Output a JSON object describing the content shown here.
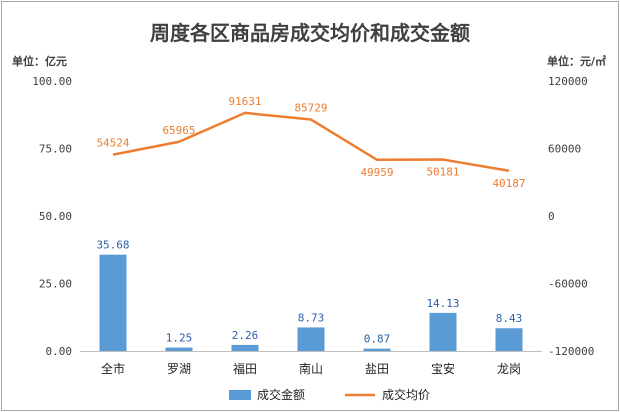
{
  "chart_data": {
    "type": "bar",
    "title": "周度各区商品房成交均价和成交金额",
    "y_unit_left": "单位：亿元",
    "y_unit_right": "单位：元/㎡",
    "categories": [
      "全市",
      "罗湖",
      "福田",
      "南山",
      "盐田",
      "宝安",
      "龙岗"
    ],
    "series": [
      {
        "name": "成交金额",
        "type": "bar",
        "axis": "left",
        "color": "#5b9bd5",
        "label_color": "#2e5ea8",
        "values": [
          35.68,
          1.25,
          2.26,
          8.73,
          0.87,
          14.13,
          8.43
        ],
        "labels": [
          "35.68",
          "1.25",
          "2.26",
          "8.73",
          "0.87",
          "14.13",
          "8.43"
        ]
      },
      {
        "name": "成交均价",
        "type": "line",
        "axis": "right",
        "color": "#ed7d31",
        "values": [
          54524,
          65965,
          91631,
          85729,
          49959,
          50181,
          40187
        ],
        "labels": [
          "54524",
          "65965",
          "91631",
          "85729",
          "49959",
          "50181",
          "40187"
        ]
      }
    ],
    "y_left": {
      "min": 0,
      "max": 100,
      "ticks": [
        0,
        25,
        50,
        75,
        100
      ],
      "tick_labels": [
        "0.00",
        "25.00",
        "50.00",
        "75.00",
        "100.00"
      ]
    },
    "y_right": {
      "min": -120000,
      "max": 120000,
      "ticks": [
        -120000,
        -60000,
        0,
        60000,
        120000
      ],
      "tick_labels": [
        "-120000",
        "-60000",
        "0",
        "60000",
        "120000"
      ]
    },
    "grid": false,
    "legend": "bottom"
  }
}
